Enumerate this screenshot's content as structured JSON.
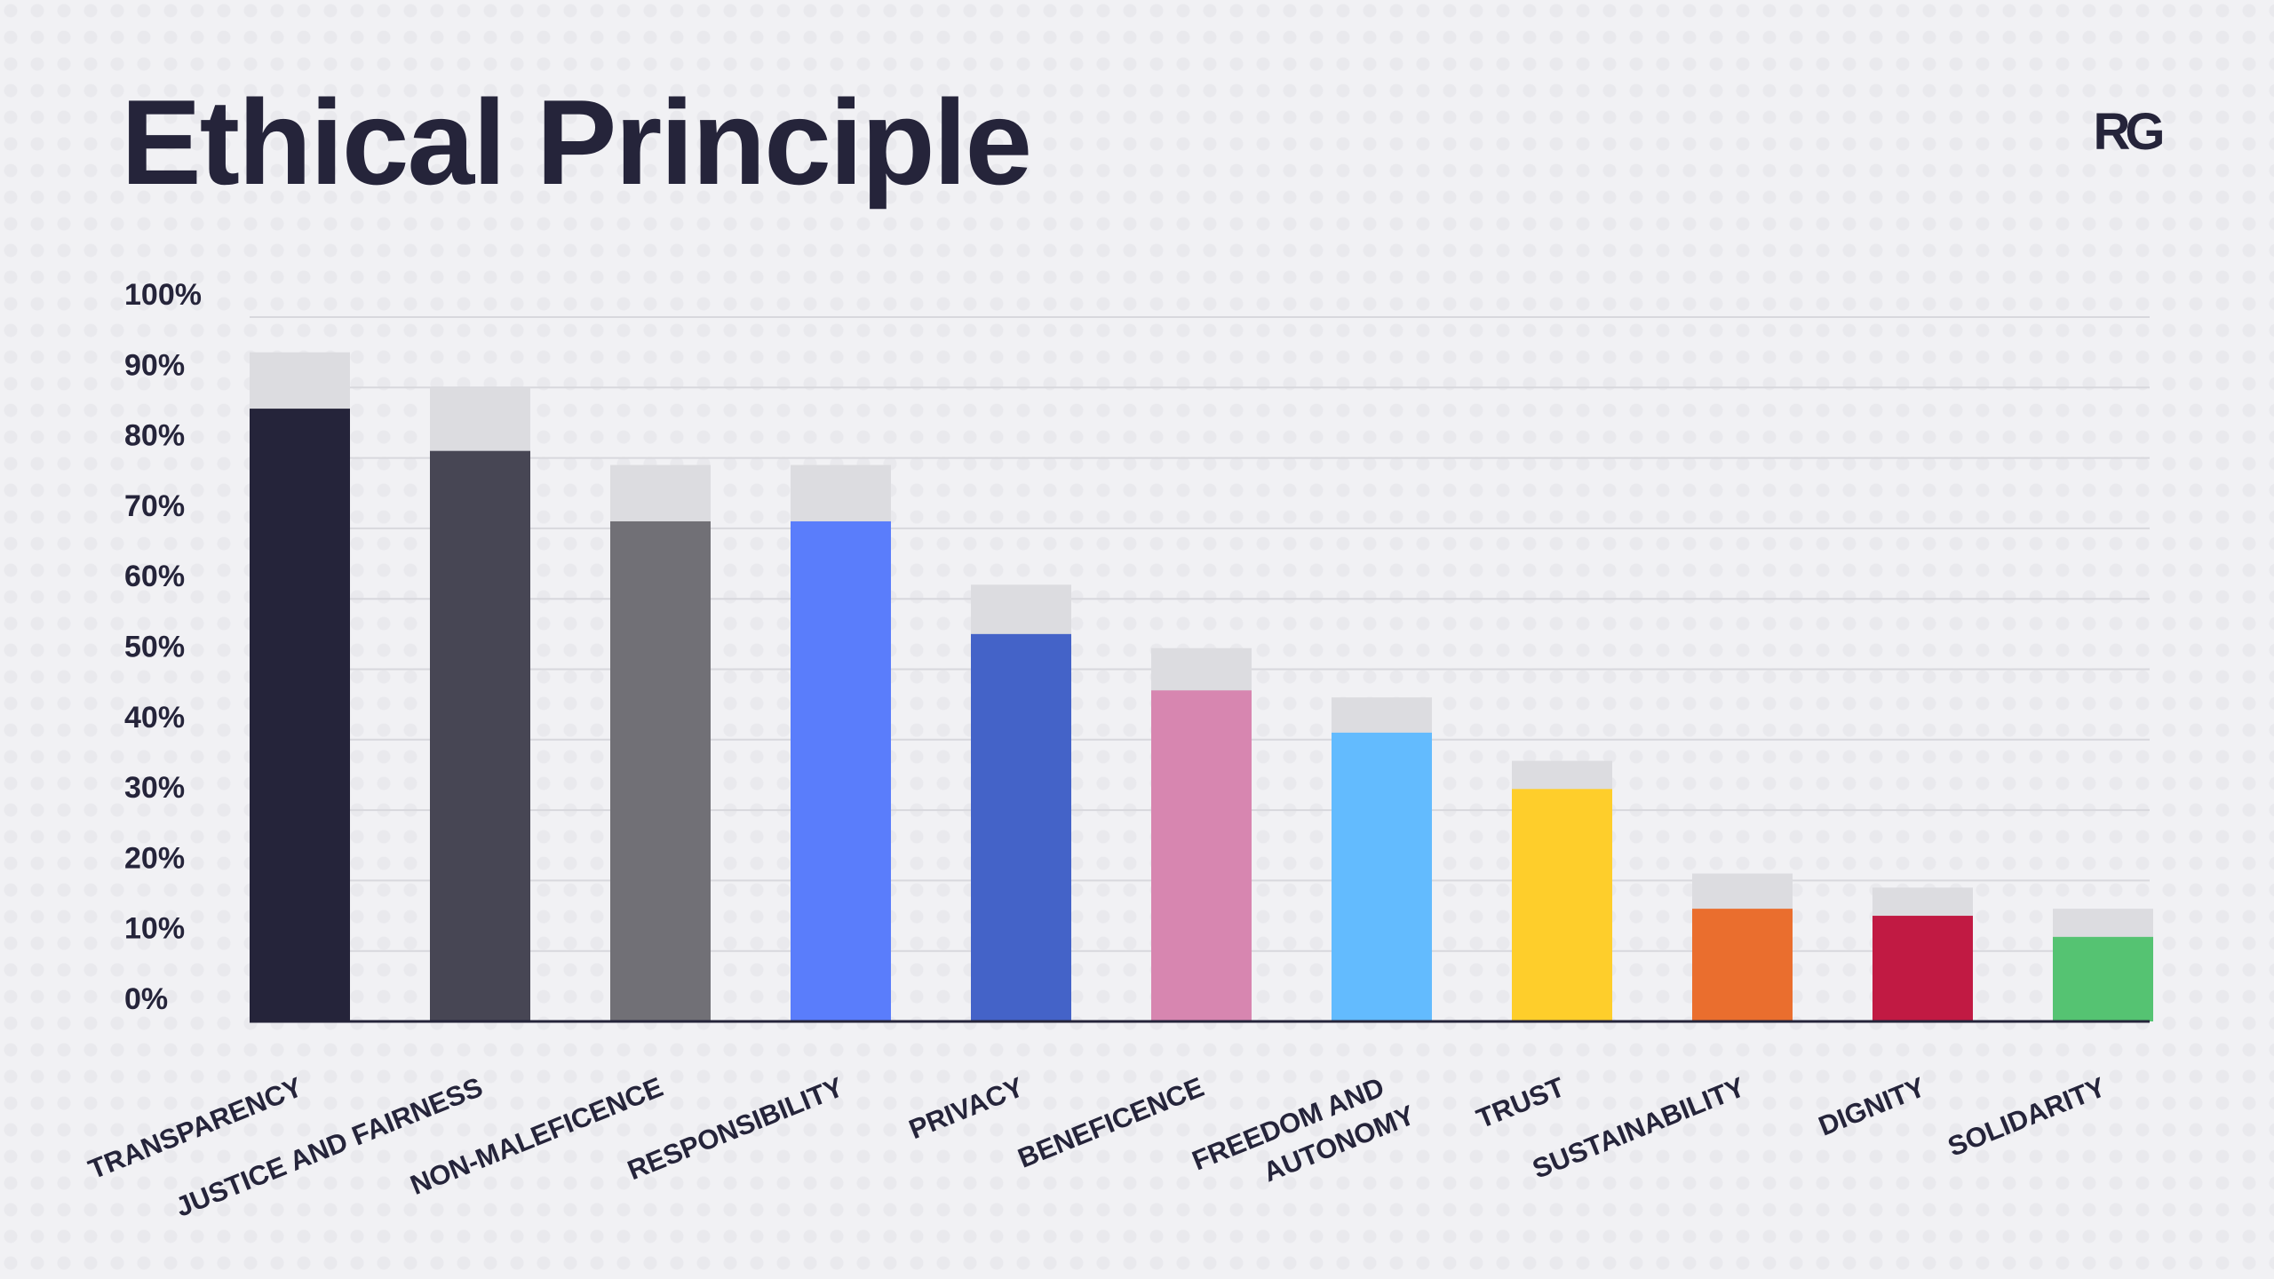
{
  "logo": {
    "text": "RG",
    "icon": "rg-logo-icon",
    "color": "#25243a"
  },
  "chart_data": {
    "type": "bar",
    "title": "Ethical Principle",
    "xlabel": "",
    "ylabel": "",
    "ylim": [
      0,
      100
    ],
    "yticks": [
      "0%",
      "10%",
      "20%",
      "30%",
      "40%",
      "50%",
      "60%",
      "70%",
      "80%",
      "90%",
      "100%"
    ],
    "grid": true,
    "legend": "none",
    "categories": [
      [
        "TRANSPARENCY"
      ],
      [
        "JUSTICE AND FAIRNESS"
      ],
      [
        "NON-MALEFICENCE"
      ],
      [
        "RESPONSIBILITY"
      ],
      [
        "PRIVACY"
      ],
      [
        "BENEFICENCE"
      ],
      [
        "FREEDOM AND",
        "AUTONOMY"
      ],
      [
        "TRUST"
      ],
      [
        "SUSTAINABILITY"
      ],
      [
        "DIGNITY"
      ],
      [
        "SOLIDARITY"
      ]
    ],
    "series": [
      {
        "values": [
          87,
          81,
          71,
          71,
          55,
          47,
          41,
          33,
          16,
          15,
          12
        ]
      },
      {
        "values": [
          95,
          90,
          79,
          79,
          62,
          53,
          46,
          37,
          21,
          19,
          16
        ]
      }
    ],
    "colors": [
      "#25243a",
      "#474654",
      "#717076",
      "#5a7dfb",
      "#4463c8",
      "#d786b0",
      "#63bbfe",
      "#fece2b",
      "#ea6e2e",
      "#c11a43",
      "#55c372"
    ],
    "overlay_color": "#dcdce0",
    "grid_color": "#d8d8dd",
    "axis_color": "#25243a"
  }
}
